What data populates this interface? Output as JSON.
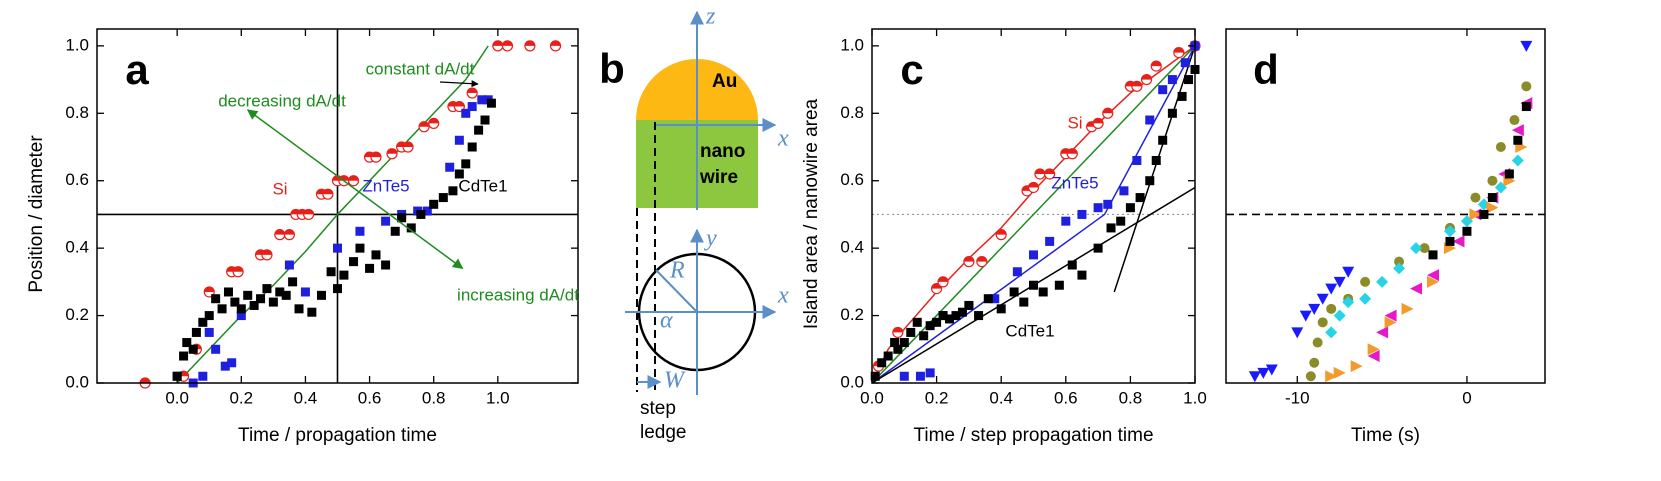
{
  "chart_data": [
    {
      "type": "scatter",
      "panel_label": "a",
      "xlabel": "Time / propagation time",
      "ylabel": "Position / diameter",
      "xlim": [
        -0.25,
        1.25
      ],
      "ylim": [
        0,
        1.05
      ],
      "xticks": [
        {
          "value": 0,
          "label": "0.0"
        },
        {
          "value": 0.2,
          "label": "0.2"
        },
        {
          "value": 0.4,
          "label": "0.4"
        },
        {
          "value": 0.6,
          "label": "0.6"
        },
        {
          "value": 0.8,
          "label": "0.8"
        },
        {
          "value": 1,
          "label": "1.0"
        }
      ],
      "yticks": [
        {
          "value": 0,
          "label": "0.0"
        },
        {
          "value": 0.2,
          "label": "0.2"
        },
        {
          "value": 0.4,
          "label": "0.4"
        },
        {
          "value": 0.6,
          "label": "0.6"
        },
        {
          "value": 0.8,
          "label": "0.8"
        },
        {
          "value": 1,
          "label": "1.0"
        }
      ],
      "hlines": [
        0.5
      ],
      "vlines": [
        0.5
      ],
      "line_style": "solid",
      "annotations": [
        "constant dA/dt",
        "decreasing dA/dt",
        "increasing dA/dt"
      ],
      "series": [
        {
          "name": "Si",
          "color": "#e8201a",
          "marker": "half-circle",
          "x": [
            -0.1,
            0.02,
            0.06,
            0.1,
            0.17,
            0.19,
            0.26,
            0.28,
            0.32,
            0.35,
            0.37,
            0.39,
            0.41,
            0.45,
            0.47,
            0.5,
            0.52,
            0.55,
            0.6,
            0.62,
            0.67,
            0.7,
            0.72,
            0.77,
            0.8,
            0.86,
            0.88,
            0.92,
            1.0,
            1.03,
            1.1,
            1.18
          ],
          "values": [
            0,
            0.02,
            0.1,
            0.27,
            0.33,
            0.33,
            0.38,
            0.38,
            0.44,
            0.44,
            0.5,
            0.5,
            0.5,
            0.56,
            0.56,
            0.6,
            0.6,
            0.6,
            0.67,
            0.67,
            0.68,
            0.7,
            0.7,
            0.76,
            0.77,
            0.82,
            0.82,
            0.86,
            1.0,
            1.0,
            1.0,
            1.0
          ]
        },
        {
          "name": "ZnTe5",
          "color": "#1f1fe0",
          "marker": "square",
          "x": [
            0.0,
            0.05,
            0.08,
            0.1,
            0.12,
            0.15,
            0.17,
            0.2,
            0.35,
            0.4,
            0.5,
            0.57,
            0.65,
            0.7,
            0.75,
            0.78,
            0.85,
            0.88,
            0.9,
            0.92,
            0.95,
            0.97
          ],
          "values": [
            0.02,
            0.0,
            0.02,
            0.15,
            0.1,
            0.05,
            0.06,
            0.2,
            0.35,
            0.27,
            0.4,
            0.45,
            0.48,
            0.5,
            0.51,
            0.51,
            0.64,
            0.72,
            0.8,
            0.82,
            0.84,
            0.84
          ]
        },
        {
          "name": "CdTe1",
          "color": "#000000",
          "marker": "square",
          "x": [
            0.0,
            0.02,
            0.03,
            0.05,
            0.06,
            0.08,
            0.1,
            0.12,
            0.14,
            0.16,
            0.18,
            0.2,
            0.22,
            0.24,
            0.26,
            0.28,
            0.3,
            0.32,
            0.34,
            0.36,
            0.38,
            0.42,
            0.45,
            0.48,
            0.5,
            0.52,
            0.55,
            0.57,
            0.6,
            0.62,
            0.65,
            0.68,
            0.7,
            0.73,
            0.76,
            0.8,
            0.83,
            0.86,
            0.88,
            0.9,
            0.92,
            0.94,
            0.96,
            0.98
          ],
          "values": [
            0.02,
            0.08,
            0.12,
            0.1,
            0.15,
            0.18,
            0.2,
            0.25,
            0.22,
            0.27,
            0.24,
            0.22,
            0.26,
            0.23,
            0.25,
            0.28,
            0.24,
            0.27,
            0.26,
            0.3,
            0.22,
            0.21,
            0.26,
            0.33,
            0.28,
            0.32,
            0.36,
            0.4,
            0.34,
            0.38,
            0.35,
            0.45,
            0.49,
            0.46,
            0.5,
            0.53,
            0.55,
            0.57,
            0.62,
            0.65,
            0.7,
            0.75,
            0.78,
            0.83
          ]
        },
        {
          "color": "#1e8c1e",
          "mode": "line",
          "x": [
            0,
            0.1,
            0.2,
            0.3,
            0.4,
            0.5,
            0.6,
            0.7,
            0.8,
            0.9,
            0.97
          ],
          "values": [
            0,
            0.1,
            0.2,
            0.29,
            0.39,
            0.5,
            0.6,
            0.7,
            0.8,
            0.9,
            1.0
          ]
        },
        {
          "color": "#1e8c1e",
          "mode": "double-arrow",
          "x": [
            0.22,
            0.89
          ],
          "values": [
            0.81,
            0.34
          ]
        }
      ]
    },
    {
      "type": "scatter",
      "panel_label": "c",
      "xlabel": "Time / step propagation time",
      "ylabel": "Island area / nanowire area",
      "xlim": [
        0,
        1
      ],
      "ylim": [
        0,
        1.05
      ],
      "xticks": [
        {
          "value": 0,
          "label": "0.0"
        },
        {
          "value": 0.2,
          "label": "0.2"
        },
        {
          "value": 0.4,
          "label": "0.4"
        },
        {
          "value": 0.6,
          "label": "0.6"
        },
        {
          "value": 0.8,
          "label": "0.8"
        },
        {
          "value": 1,
          "label": "1.0"
        }
      ],
      "yticks": [
        {
          "value": 0,
          "label": "0.0"
        },
        {
          "value": 0.2,
          "label": "0.2"
        },
        {
          "value": 0.4,
          "label": "0.4"
        },
        {
          "value": 0.6,
          "label": "0.6"
        },
        {
          "value": 0.8,
          "label": "0.8"
        },
        {
          "value": 1,
          "label": "1.0"
        }
      ],
      "hlines": [
        0.5
      ],
      "line_style": "dotted",
      "series": [
        {
          "name": "Si",
          "color": "#e8201a",
          "marker": "half-circle",
          "x": [
            0.02,
            0.08,
            0.2,
            0.22,
            0.3,
            0.34,
            0.4,
            0.48,
            0.5,
            0.52,
            0.55,
            0.6,
            0.62,
            0.68,
            0.7,
            0.73,
            0.8,
            0.82,
            0.85,
            0.88,
            0.95,
            1.0
          ],
          "values": [
            0.05,
            0.15,
            0.28,
            0.3,
            0.36,
            0.36,
            0.44,
            0.57,
            0.58,
            0.62,
            0.62,
            0.68,
            0.68,
            0.76,
            0.77,
            0.8,
            0.88,
            0.88,
            0.9,
            0.94,
            0.98,
            1.0
          ]
        },
        {
          "name": "ZnTe5",
          "color": "#1f1fe0",
          "marker": "square",
          "x": [
            0.1,
            0.15,
            0.18,
            0.22,
            0.3,
            0.38,
            0.45,
            0.5,
            0.55,
            0.6,
            0.65,
            0.7,
            0.73,
            0.78,
            0.82,
            0.86,
            0.9,
            0.93,
            0.97,
            1.0
          ],
          "values": [
            0.02,
            0.02,
            0.03,
            0.2,
            0.23,
            0.25,
            0.33,
            0.38,
            0.42,
            0.48,
            0.5,
            0.52,
            0.53,
            0.57,
            0.66,
            0.78,
            0.87,
            0.9,
            0.95,
            1.0
          ]
        },
        {
          "name": "CdTe1",
          "color": "#000000",
          "marker": "square",
          "x": [
            0.01,
            0.03,
            0.05,
            0.07,
            0.08,
            0.1,
            0.12,
            0.14,
            0.16,
            0.18,
            0.2,
            0.22,
            0.24,
            0.26,
            0.28,
            0.3,
            0.33,
            0.36,
            0.4,
            0.44,
            0.47,
            0.5,
            0.53,
            0.58,
            0.62,
            0.65,
            0.7,
            0.74,
            0.77,
            0.8,
            0.83,
            0.86,
            0.88,
            0.9,
            0.93,
            0.96,
            0.98,
            1.0
          ],
          "values": [
            0.02,
            0.06,
            0.08,
            0.12,
            0.1,
            0.12,
            0.15,
            0.18,
            0.14,
            0.17,
            0.18,
            0.2,
            0.19,
            0.2,
            0.21,
            0.23,
            0.2,
            0.25,
            0.22,
            0.27,
            0.24,
            0.29,
            0.27,
            0.29,
            0.35,
            0.32,
            0.4,
            0.46,
            0.48,
            0.52,
            0.55,
            0.6,
            0.66,
            0.72,
            0.8,
            0.85,
            0.9,
            0.93
          ]
        },
        {
          "color": "#e8201a",
          "mode": "line",
          "x": [
            0,
            0.05,
            0.1,
            0.2,
            0.3,
            0.4,
            0.5,
            0.6,
            0.7,
            0.8,
            0.9,
            1.0
          ],
          "values": [
            0,
            0.1,
            0.16,
            0.27,
            0.37,
            0.46,
            0.57,
            0.67,
            0.77,
            0.86,
            0.93,
            1.0
          ]
        },
        {
          "color": "#1e8c1e",
          "mode": "line",
          "x": [
            0,
            1
          ],
          "values": [
            0,
            1
          ]
        },
        {
          "color": "#1f1fe0",
          "mode": "line",
          "x": [
            0,
            0.72,
            1
          ],
          "values": [
            0,
            0.5,
            1
          ]
        },
        {
          "color": "#000000",
          "mode": "line",
          "x": [
            0,
            1
          ],
          "values": [
            0,
            0.58
          ]
        },
        {
          "color": "#000000",
          "mode": "line",
          "x": [
            0.75,
            1
          ],
          "values": [
            0.27,
            1
          ]
        }
      ]
    },
    {
      "type": "scatter",
      "panel_label": "d",
      "xlabel": "Time (s)",
      "xlim": [
        -14.2,
        4.6
      ],
      "ylim": [
        0,
        1.05
      ],
      "xticks": [
        -10,
        0
      ],
      "hlines": [
        0.5
      ],
      "line_style": "dashed",
      "series": [
        {
          "color": "#1a1aff",
          "marker": "triangle-down",
          "x": [
            -12.5,
            -12,
            -11.5,
            -10,
            -9.5,
            -9,
            -8.5,
            -8,
            -7.5,
            -7,
            3.5
          ],
          "values": [
            0.02,
            0.03,
            0.04,
            0.15,
            0.2,
            0.22,
            0.25,
            0.28,
            0.3,
            0.33,
            1.0
          ]
        },
        {
          "color": "#8b8b2a",
          "marker": "circle",
          "x": [
            -9.2,
            -9,
            -8.8,
            -8.5,
            -8,
            -7,
            -6,
            -4,
            -2.5,
            -1,
            0.5,
            1.5,
            2,
            2.8,
            3.5
          ],
          "values": [
            0.02,
            0.06,
            0.12,
            0.18,
            0.22,
            0.25,
            0.3,
            0.36,
            0.4,
            0.46,
            0.55,
            0.6,
            0.7,
            0.78,
            0.88
          ]
        },
        {
          "color": "#26d4e8",
          "marker": "diamond",
          "x": [
            -8,
            -7.5,
            -7,
            -6,
            -5,
            -4,
            -3,
            -1,
            0,
            1,
            2,
            3
          ],
          "values": [
            0.15,
            0.2,
            0.24,
            0.25,
            0.3,
            0.34,
            0.4,
            0.45,
            0.48,
            0.53,
            0.58,
            0.66
          ]
        },
        {
          "color": "#e619c8",
          "marker": "triangle-left",
          "x": [
            -5.5,
            -5,
            -4.5,
            -3,
            -2,
            -0.5,
            0.5,
            1.5,
            2.2,
            3,
            3.5
          ],
          "values": [
            0.08,
            0.15,
            0.2,
            0.28,
            0.32,
            0.42,
            0.5,
            0.55,
            0.62,
            0.75,
            0.83
          ]
        },
        {
          "color": "#f39a2c",
          "marker": "triangle-right",
          "x": [
            -8,
            -7.5,
            -6.5,
            -5.5,
            -4.5,
            -3.5,
            -2,
            -1,
            0.5,
            1.5,
            2.5,
            3.2
          ],
          "values": [
            0.02,
            0.03,
            0.05,
            0.1,
            0.18,
            0.22,
            0.3,
            0.4,
            0.5,
            0.52,
            0.6,
            0.7
          ]
        },
        {
          "color": "#000000",
          "marker": "square",
          "x": [
            -2,
            -1,
            0,
            1,
            1.5,
            2.5,
            3,
            3.5
          ],
          "values": [
            0.38,
            0.42,
            0.45,
            0.5,
            0.55,
            0.62,
            0.72,
            0.82
          ]
        }
      ]
    }
  ],
  "diagram": {
    "label": "b",
    "au": "Au",
    "nanowire": [
      "nano",
      "wire"
    ],
    "axes": [
      "z",
      "x",
      "y",
      "x"
    ],
    "circle": [
      "R",
      "α",
      "W"
    ],
    "step_ledge": [
      "step",
      "ledge"
    ]
  }
}
